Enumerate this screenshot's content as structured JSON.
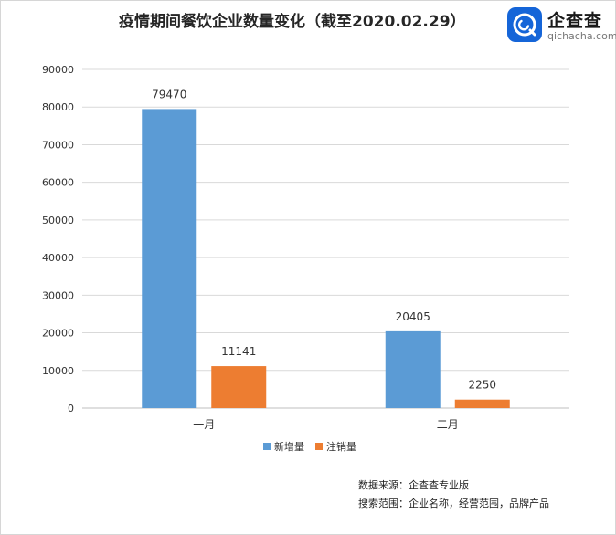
{
  "chart_data": {
    "type": "bar",
    "title": "疫情期间餐饮企业数量变化（截至2020.02.29）",
    "categories": [
      "一月",
      "二月"
    ],
    "series": [
      {
        "name": "新增量",
        "values": [
          79470,
          20405
        ],
        "color": "#5b9bd5"
      },
      {
        "name": "注销量",
        "values": [
          11141,
          2250
        ],
        "color": "#ed7d31"
      }
    ],
    "ylim": [
      0,
      90000
    ],
    "yticks": [
      0,
      10000,
      20000,
      30000,
      40000,
      50000,
      60000,
      70000,
      80000,
      90000
    ],
    "grid": true,
    "data_labels": true,
    "legend_position": "bottom",
    "xlabel": "",
    "ylabel": ""
  },
  "logo": {
    "name": "企查查",
    "domain": "qichacha.com",
    "color": "#1565d8"
  },
  "source": {
    "line1": "数据来源：企查查专业版",
    "line2": "搜索范围：企业名称，经营范围，品牌产品"
  }
}
